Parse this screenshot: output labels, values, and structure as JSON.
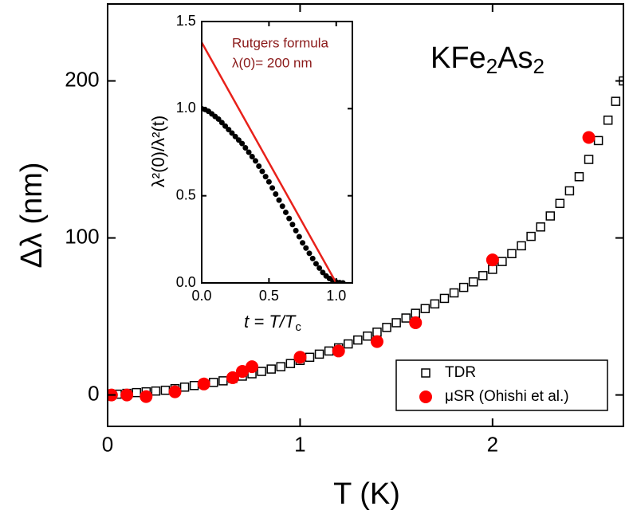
{
  "chart_data": [
    {
      "type": "scatter",
      "xlabel": "T (K)",
      "ylabel": "Δλ (nm)",
      "annotation": [
        "KFe",
        "2",
        "As",
        "2"
      ],
      "xlim": [
        0,
        2.68
      ],
      "ylim": [
        -20,
        249
      ],
      "xticks": [
        0,
        1,
        2
      ],
      "yticks": [
        0,
        100,
        200
      ],
      "legend": "lower right",
      "series": [
        {
          "name": "TDR",
          "color": "#000000",
          "marker": "square",
          "x": [
            0,
            0.05,
            0.1,
            0.15,
            0.2,
            0.25,
            0.3,
            0.35,
            0.4,
            0.45,
            0.5,
            0.55,
            0.6,
            0.65,
            0.7,
            0.75,
            0.8,
            0.85,
            0.9,
            0.95,
            1.0,
            1.05,
            1.1,
            1.15,
            1.2,
            1.25,
            1.3,
            1.35,
            1.4,
            1.45,
            1.5,
            1.55,
            1.6,
            1.65,
            1.7,
            1.75,
            1.8,
            1.85,
            1.9,
            1.95,
            2.0,
            2.05,
            2.1,
            2.15,
            2.2,
            2.25,
            2.3,
            2.35,
            2.4,
            2.45,
            2.5,
            2.55,
            2.6,
            2.64,
            2.68
          ],
          "values": [
            0,
            0.5,
            1,
            1.5,
            2,
            2.5,
            3,
            4,
            5,
            6,
            7,
            8,
            9,
            10.5,
            12,
            13.5,
            15,
            16.5,
            18,
            20,
            22,
            24,
            26,
            28,
            30,
            32.5,
            35,
            37.5,
            40,
            43,
            46,
            49,
            52,
            55,
            58,
            61.5,
            65,
            68.5,
            72,
            76,
            80,
            85,
            90,
            95,
            101,
            107,
            114,
            122,
            130,
            139,
            150,
            162,
            175,
            187,
            200
          ]
        },
        {
          "name": "μSR (Ohishi et al.)",
          "color": "#ff0000",
          "marker": "circle",
          "x": [
            0.02,
            0.1,
            0.2,
            0.35,
            0.5,
            0.65,
            0.7,
            0.75,
            1.0,
            1.2,
            1.4,
            1.6,
            2.0,
            2.5
          ],
          "values": [
            0,
            0,
            -1,
            2,
            7,
            11,
            15,
            18,
            24,
            28,
            34,
            46,
            86,
            164
          ]
        }
      ]
    },
    {
      "type": "scatter",
      "xlabel": [
        "t = T/T",
        "c"
      ],
      "ylabel": "λ²(0)/λ²(t)",
      "annotation": [
        "Rutgers formula",
        "λ(0)= 200 nm"
      ],
      "annotation_color": "#8b1a1a",
      "xlim": [
        0,
        1.12
      ],
      "ylim": [
        0,
        1.5
      ],
      "xticks": [
        {
          "value": 0,
          "label": "0.0"
        },
        {
          "value": 0.5,
          "label": "0.5"
        },
        {
          "value": 1,
          "label": "1.0"
        }
      ],
      "yticks": [
        {
          "value": 0,
          "label": "0.0"
        },
        {
          "value": 0.5,
          "label": "0.5"
        },
        {
          "value": 1,
          "label": "1.0"
        },
        {
          "value": 1.5,
          "label": "1.5"
        }
      ],
      "series": [
        {
          "color": "#000000",
          "marker": "dot",
          "x": [
            0,
            0.025,
            0.05,
            0.075,
            0.1,
            0.125,
            0.15,
            0.175,
            0.2,
            0.225,
            0.25,
            0.275,
            0.3,
            0.325,
            0.35,
            0.375,
            0.4,
            0.425,
            0.45,
            0.475,
            0.5,
            0.525,
            0.55,
            0.575,
            0.6,
            0.625,
            0.65,
            0.675,
            0.7,
            0.725,
            0.75,
            0.775,
            0.8,
            0.825,
            0.85,
            0.875,
            0.9,
            0.925,
            0.95,
            0.975,
            1.0,
            1.025,
            1.05
          ],
          "values": [
            1.0,
            0.995,
            0.985,
            0.97,
            0.955,
            0.94,
            0.92,
            0.9,
            0.88,
            0.86,
            0.84,
            0.82,
            0.8,
            0.775,
            0.75,
            0.725,
            0.7,
            0.67,
            0.64,
            0.61,
            0.58,
            0.545,
            0.51,
            0.475,
            0.44,
            0.405,
            0.37,
            0.335,
            0.3,
            0.265,
            0.23,
            0.2,
            0.17,
            0.14,
            0.11,
            0.085,
            0.06,
            0.04,
            0.025,
            0.012,
            0.005,
            0.002,
            0.0
          ]
        },
        {
          "color": "#e8211a",
          "marker": "line",
          "x": [
            0,
            1.0
          ],
          "values": [
            1.38,
            0
          ]
        }
      ]
    }
  ]
}
